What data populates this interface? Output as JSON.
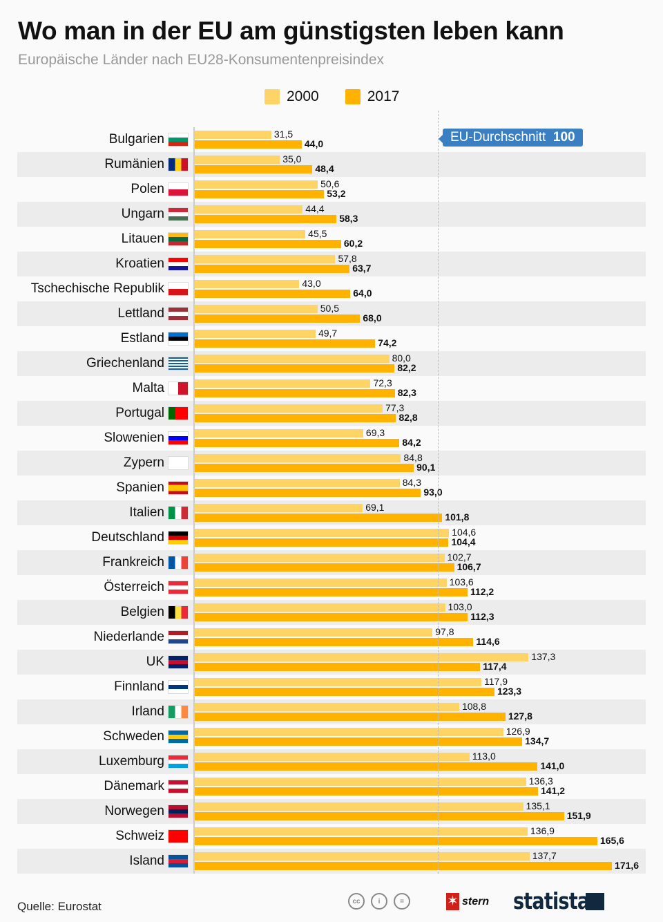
{
  "title": "Wo man in der EU am günstigsten leben kann",
  "subtitle": "Europäische Länder nach EU28-Konsumentenpreisindex",
  "source": "Quelle: Eurostat",
  "logos": {
    "stern": "stern",
    "statista": "statista"
  },
  "colors": {
    "2000": "#ffd466",
    "2017": "#ffb300",
    "avg": "#3a7fc1"
  },
  "chart_data": {
    "type": "bar",
    "orientation": "horizontal",
    "grid": false,
    "legend": "top-center",
    "xlim": [
      0,
      175
    ],
    "reference": {
      "label": "EU-Durchschnitt",
      "value": 100
    },
    "categories": [
      "Bulgarien",
      "Rumänien",
      "Polen",
      "Ungarn",
      "Litauen",
      "Kroatien",
      "Tschechische Republik",
      "Lettland",
      "Estland",
      "Griechenland",
      "Malta",
      "Portugal",
      "Slowenien",
      "Zypern",
      "Spanien",
      "Italien",
      "Deutschland",
      "Frankreich",
      "Österreich",
      "Belgien",
      "Niederlande",
      "UK",
      "Finnland",
      "Irland",
      "Schweden",
      "Luxemburg",
      "Dänemark",
      "Norwegen",
      "Schweiz",
      "Island"
    ],
    "series": [
      {
        "name": "2000",
        "values": [
          31.5,
          35.0,
          50.6,
          44.4,
          45.5,
          57.8,
          43.0,
          50.5,
          49.7,
          80.0,
          72.3,
          77.3,
          69.3,
          84.8,
          84.3,
          69.1,
          104.6,
          102.7,
          103.6,
          103.0,
          97.8,
          137.3,
          117.9,
          108.8,
          126.9,
          113.0,
          136.3,
          135.1,
          136.9,
          137.7
        ]
      },
      {
        "name": "2017",
        "values": [
          44.0,
          48.4,
          53.2,
          58.3,
          60.2,
          63.7,
          64.0,
          68.0,
          74.2,
          82.2,
          82.3,
          82.8,
          84.2,
          90.1,
          93.0,
          101.8,
          104.4,
          106.7,
          112.2,
          112.3,
          114.6,
          117.4,
          123.3,
          127.8,
          134.7,
          141.0,
          141.2,
          151.9,
          165.6,
          171.6
        ]
      }
    ]
  },
  "flags": [
    {
      "dir": "h",
      "c": [
        "#ffffff",
        "#00966e",
        "#d62612"
      ]
    },
    {
      "dir": "v",
      "c": [
        "#002b7f",
        "#fcd116",
        "#ce1126"
      ]
    },
    {
      "dir": "h",
      "c": [
        "#ffffff",
        "#dc143c"
      ]
    },
    {
      "dir": "h",
      "c": [
        "#ce2939",
        "#ffffff",
        "#477050"
      ]
    },
    {
      "dir": "h",
      "c": [
        "#fdb913",
        "#006a44",
        "#c1272d"
      ]
    },
    {
      "dir": "h",
      "c": [
        "#ff0000",
        "#ffffff",
        "#171796"
      ]
    },
    {
      "dir": "h",
      "c": [
        "#ffffff",
        "#d7141a"
      ]
    },
    {
      "dir": "h",
      "c": [
        "#9e3039",
        "#ffffff",
        "#9e3039"
      ]
    },
    {
      "dir": "h",
      "c": [
        "#0072ce",
        "#000000",
        "#ffffff"
      ]
    },
    {
      "dir": "h",
      "c": [
        "#0d5eaf",
        "#ffffff",
        "#0d5eaf",
        "#ffffff",
        "#0d5eaf",
        "#ffffff",
        "#0d5eaf",
        "#ffffff",
        "#0d5eaf"
      ]
    },
    {
      "dir": "v",
      "c": [
        "#ffffff",
        "#cf142b"
      ]
    },
    {
      "dir": "v",
      "c": [
        "#006600",
        "#ff0000",
        "#ff0000"
      ]
    },
    {
      "dir": "h",
      "c": [
        "#ffffff",
        "#0000ff",
        "#ff0000"
      ]
    },
    {
      "dir": "h",
      "c": [
        "#ffffff"
      ]
    },
    {
      "dir": "h",
      "c": [
        "#c60b1e",
        "#ffc400",
        "#ffc400",
        "#c60b1e"
      ]
    },
    {
      "dir": "v",
      "c": [
        "#009246",
        "#ffffff",
        "#ce2b37"
      ]
    },
    {
      "dir": "h",
      "c": [
        "#000000",
        "#dd0000",
        "#ffce00"
      ]
    },
    {
      "dir": "v",
      "c": [
        "#0055a4",
        "#ffffff",
        "#ef4135"
      ]
    },
    {
      "dir": "h",
      "c": [
        "#ed2939",
        "#ffffff",
        "#ed2939"
      ]
    },
    {
      "dir": "v",
      "c": [
        "#000000",
        "#fae042",
        "#ed2939"
      ]
    },
    {
      "dir": "h",
      "c": [
        "#ae1c28",
        "#ffffff",
        "#21468b"
      ]
    },
    {
      "dir": "h",
      "c": [
        "#012169",
        "#c8102e",
        "#012169"
      ]
    },
    {
      "dir": "h",
      "c": [
        "#ffffff",
        "#003580",
        "#ffffff"
      ]
    },
    {
      "dir": "v",
      "c": [
        "#169b62",
        "#ffffff",
        "#ff883e"
      ]
    },
    {
      "dir": "h",
      "c": [
        "#006aa7",
        "#fecc00",
        "#006aa7"
      ]
    },
    {
      "dir": "h",
      "c": [
        "#ed2939",
        "#ffffff",
        "#00a1de"
      ]
    },
    {
      "dir": "h",
      "c": [
        "#c8102e",
        "#ffffff",
        "#c8102e"
      ]
    },
    {
      "dir": "h",
      "c": [
        "#ba0c2f",
        "#00205b",
        "#ba0c2f"
      ]
    },
    {
      "dir": "h",
      "c": [
        "#ff0000"
      ]
    },
    {
      "dir": "h",
      "c": [
        "#02529c",
        "#dc1e35",
        "#02529c"
      ]
    }
  ]
}
